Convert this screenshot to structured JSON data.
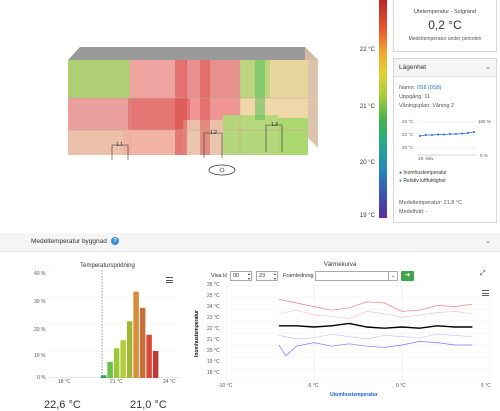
{
  "scale": {
    "labels": [
      "22 °C",
      "21 °C",
      "20 °C",
      "19 °C"
    ]
  },
  "outdoor": {
    "caption": "Utetemperatur - Solgränd",
    "value": "0,2 °C",
    "subcaption": "Medeltemperatur under perioden"
  },
  "apartment": {
    "title": "Lägenhet",
    "name_label": "Namn:",
    "name_value": "0S8 (0S8)",
    "stairwell": "Uppgång: 11",
    "floor": "Våningsplan: Våning 2",
    "mini_chart": {
      "y_left": [
        "24 °C",
        "22 °C",
        "20 °C"
      ],
      "y_right": [
        "100 %",
        "0 %"
      ],
      "x_label": "19. Nov"
    },
    "legend_temp": "Inomhustemperatur",
    "legend_humidity": "Relativ luftfuktighet",
    "mean_temp": "Medeltemperatur: 21,8 °C",
    "mean_humidity": "Medelfukt: -"
  },
  "building": {
    "labels": [
      "1.1",
      "1.2",
      "1.3"
    ]
  },
  "section": {
    "title": "Medeltemperatur byggnad",
    "help": "?"
  },
  "distribution": {
    "title": "Temperaturspridning",
    "y_ticks": [
      "40 %",
      "30 %",
      "20 %",
      "10 %",
      "0 %"
    ],
    "x_ticks": [
      "18 °C",
      "21 °C",
      "24 °C"
    ],
    "value_left": "22,6 °C",
    "value_right": "21,0 °C"
  },
  "heating": {
    "title": "Värmekurva",
    "show_label": "Visa kl",
    "hour_from": "00",
    "hour_to": "23",
    "flow_label": "Framledning",
    "y_label": "Inomhustemperatur",
    "x_label": "Utomhustemperatur",
    "y_ticks": [
      "26 °C",
      "25 °C",
      "24 °C",
      "23 °C",
      "22 °C",
      "21 °C",
      "20 °C",
      "19 °C",
      "18 °C"
    ],
    "x_ticks": [
      "-10 °C",
      "-5 °C",
      "0 °C",
      "5 °C"
    ]
  },
  "chart_data": [
    {
      "type": "bar",
      "title": "Temperaturspridning",
      "x": [
        20.8,
        21.2,
        21.6,
        22.0,
        22.4,
        22.8,
        23.2,
        23.6,
        24.0
      ],
      "values": [
        1,
        6,
        11,
        14,
        21,
        32,
        26,
        16,
        10
      ],
      "colors": [
        "#2aa24a",
        "#6cc043",
        "#9bc83a",
        "#b5cc3a",
        "#9fb83a",
        "#d98c3a",
        "#c8703a",
        "#d84a36",
        "#c23a34"
      ],
      "xlim": [
        17.5,
        25.5
      ],
      "ylim": [
        0,
        40
      ],
      "mean_line": 20.7
    },
    {
      "type": "line",
      "title": "Värmekurva",
      "xlim": [
        -10,
        5
      ],
      "ylim": [
        18,
        26
      ],
      "series": [
        {
          "color": "#000000",
          "x": [
            -7,
            -6,
            -5,
            -4,
            -3,
            -2,
            -1,
            0,
            1,
            2,
            3,
            4
          ],
          "values": [
            22.6,
            22.6,
            22.5,
            22.6,
            22.8,
            22.5,
            22.4,
            22.5,
            22.4,
            22.6,
            22.5,
            22.5
          ]
        },
        {
          "color": "#f08080",
          "x": [
            -7,
            -6,
            -5,
            -4,
            -3,
            -2,
            -1,
            0,
            1,
            2,
            3,
            4
          ],
          "values": [
            24.8,
            24.5,
            24.2,
            23.9,
            24.1,
            24.6,
            24.5,
            23.8,
            23.9,
            24.3,
            24.2,
            24.4
          ]
        },
        {
          "color": "#7b7bff",
          "x": [
            -7,
            -6.6,
            -6,
            -5,
            -4,
            -3,
            -2,
            -1,
            0,
            1,
            2,
            3,
            4
          ],
          "values": [
            21.0,
            20.1,
            20.9,
            21.2,
            20.9,
            21.1,
            20.9,
            20.8,
            21.0,
            21.3,
            21.2,
            21.0,
            21.0
          ]
        },
        {
          "color": "#f7c6c6",
          "x": [
            -7,
            -6,
            -5,
            -4,
            -3,
            -2,
            -1,
            0,
            1,
            2,
            3,
            4
          ],
          "values": [
            23.6,
            23.9,
            23.5,
            23.4,
            23.2,
            23.8,
            23.6,
            23.3,
            23.5,
            23.7,
            23.8,
            23.6
          ]
        },
        {
          "color": "#c8c8ff",
          "x": [
            -7,
            -6,
            -5,
            -4,
            -3,
            -2,
            -1,
            0,
            1,
            2,
            3,
            4
          ],
          "values": [
            21.8,
            21.5,
            21.6,
            21.9,
            21.7,
            21.5,
            21.8,
            21.7,
            21.6,
            21.9,
            21.8,
            21.7
          ]
        }
      ]
    }
  ]
}
